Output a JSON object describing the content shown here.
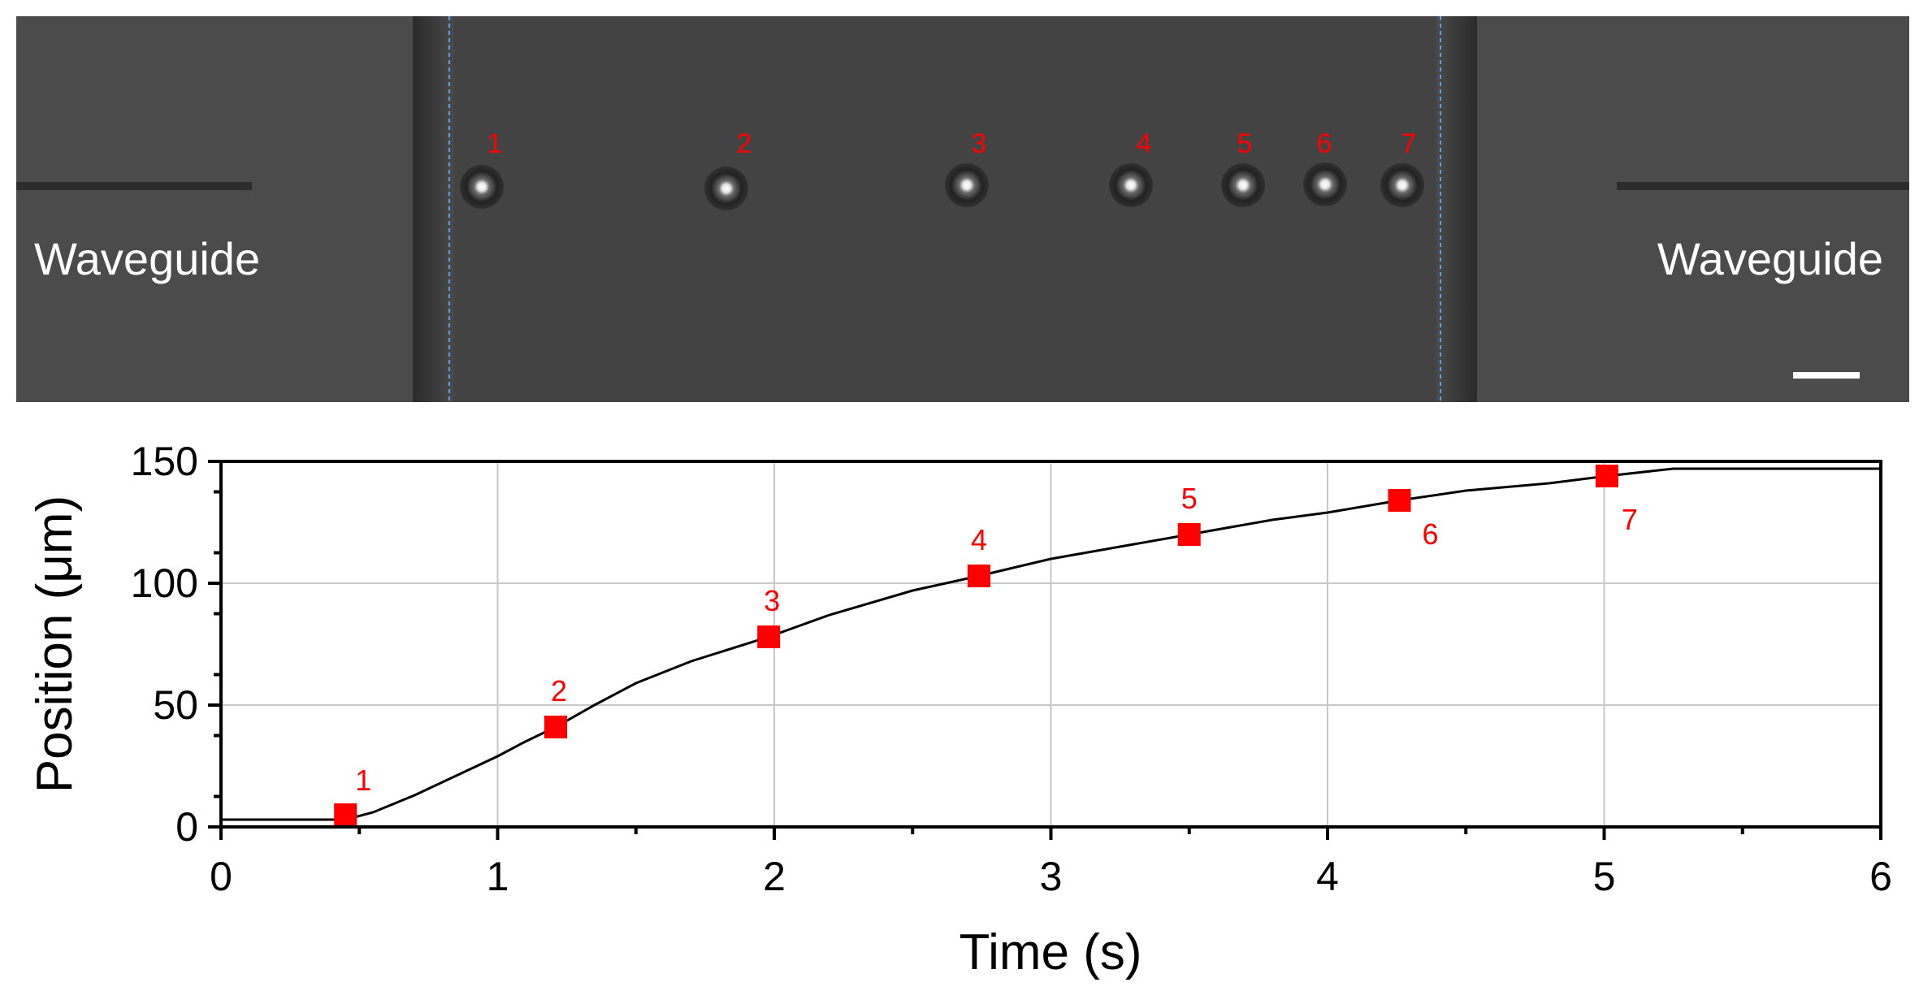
{
  "micrograph": {
    "left_label": "Waveguide",
    "right_label": "Waveguide",
    "particle_labels": [
      "1",
      "2",
      "3",
      "4",
      "5",
      "6",
      "7"
    ],
    "label_color": "#ff0000"
  },
  "chart_data": {
    "type": "scatter",
    "xlabel": "Time (s)",
    "ylabel": "Position (μm)",
    "xlim": [
      0,
      6
    ],
    "ylim": [
      0,
      150
    ],
    "x_ticks": [
      "0",
      "1",
      "2",
      "3",
      "4",
      "5",
      "6"
    ],
    "y_ticks": [
      "0",
      "50",
      "100",
      "150"
    ],
    "grid": true,
    "marker_color": "#ff0000",
    "line_color": "#000000",
    "points": [
      {
        "label": "1",
        "x": 0.45,
        "y": 5
      },
      {
        "label": "2",
        "x": 1.21,
        "y": 41
      },
      {
        "label": "3",
        "x": 1.98,
        "y": 78
      },
      {
        "label": "4",
        "x": 2.74,
        "y": 103
      },
      {
        "label": "5",
        "x": 3.5,
        "y": 120
      },
      {
        "label": "6",
        "x": 4.26,
        "y": 134
      },
      {
        "label": "7",
        "x": 5.01,
        "y": 144
      }
    ],
    "trajectory": {
      "x": [
        0,
        0.45,
        0.55,
        0.7,
        0.85,
        1.0,
        1.1,
        1.21,
        1.35,
        1.5,
        1.7,
        1.98,
        2.2,
        2.5,
        2.74,
        3.0,
        3.25,
        3.5,
        3.8,
        4.0,
        4.26,
        4.5,
        4.8,
        5.01,
        5.25,
        6.0
      ],
      "y": [
        3,
        3,
        6,
        13,
        21,
        29,
        35,
        41,
        50,
        59,
        68,
        78,
        87,
        97,
        103,
        110,
        115,
        120,
        126,
        129,
        134,
        138,
        141,
        144,
        147,
        147
      ]
    }
  }
}
